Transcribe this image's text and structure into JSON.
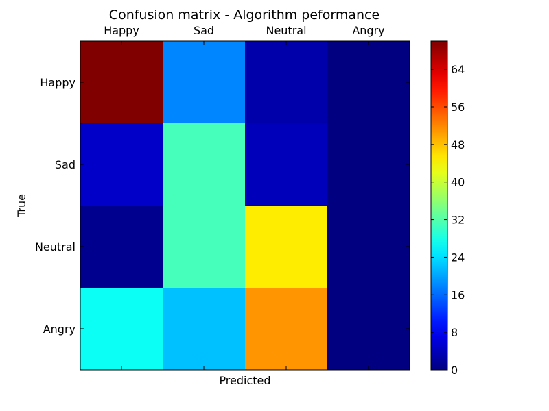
{
  "chart_data": {
    "type": "heatmap",
    "title": "Confusion matrix - Algorithm peformance",
    "xlabel": "Predicted",
    "ylabel": "True",
    "x_categories": [
      "Happy",
      "Sad",
      "Neutral",
      "Angry"
    ],
    "y_categories": [
      "Happy",
      "Sad",
      "Neutral",
      "Angry"
    ],
    "values": [
      [
        70,
        18,
        3,
        0
      ],
      [
        5,
        31,
        4,
        0
      ],
      [
        1,
        31,
        45,
        0
      ],
      [
        27,
        22,
        51,
        0
      ]
    ],
    "colormap": "jet",
    "vmin": 0,
    "vmax": 70,
    "colorbar_ticks": [
      0,
      8,
      16,
      24,
      32,
      40,
      48,
      56,
      64
    ]
  }
}
